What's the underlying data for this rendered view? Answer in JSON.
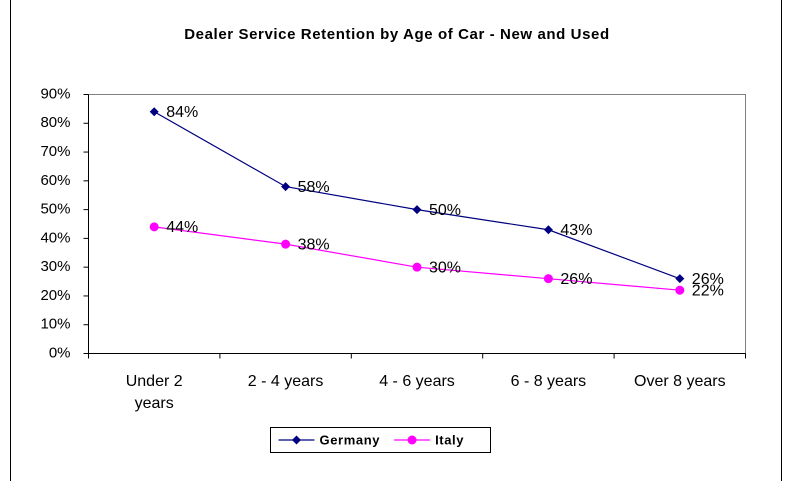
{
  "chart_data": {
    "type": "line",
    "title": "Dealer Service Retention by Age of Car - New and Used",
    "categories": [
      "Under 2 years",
      "2 - 4 years",
      "4 - 6 years",
      "6 - 8 years",
      "Over 8 years"
    ],
    "series": [
      {
        "name": "Germany",
        "color": "#000080",
        "marker": "diamond",
        "values": [
          84,
          58,
          50,
          43,
          26
        ],
        "value_labels": [
          "84%",
          "58%",
          "50%",
          "43%",
          "26%"
        ]
      },
      {
        "name": "Italy",
        "color": "#ff00ff",
        "marker": "circle",
        "values": [
          44,
          38,
          30,
          26,
          22
        ],
        "value_labels": [
          "44%",
          "38%",
          "30%",
          "26%",
          "22%"
        ]
      }
    ],
    "ylim": [
      0,
      90
    ],
    "yticks": [
      {
        "value": 0,
        "label": "0%"
      },
      {
        "value": 10,
        "label": "10%"
      },
      {
        "value": 20,
        "label": "20%"
      },
      {
        "value": 30,
        "label": "30%"
      },
      {
        "value": 40,
        "label": "40%"
      },
      {
        "value": 50,
        "label": "50%"
      },
      {
        "value": 60,
        "label": "60%"
      },
      {
        "value": 70,
        "label": "70%"
      },
      {
        "value": 80,
        "label": "80%"
      },
      {
        "value": 90,
        "label": "90%"
      }
    ],
    "legend": "bottom"
  }
}
